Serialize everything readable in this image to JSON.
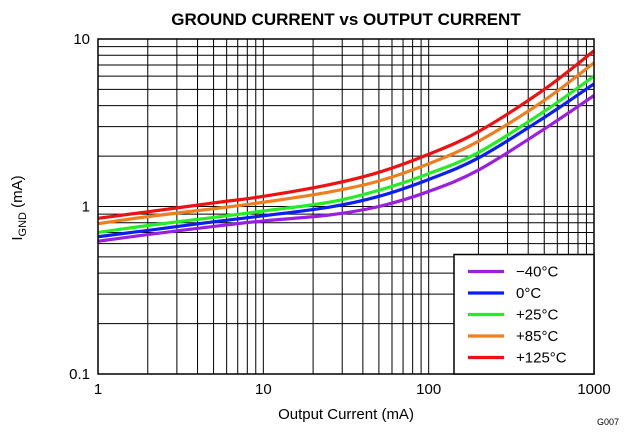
{
  "chart_data": {
    "type": "line",
    "title": "GROUND CURRENT vs OUTPUT CURRENT",
    "xlabel": "Output Current (mA)",
    "ylabel": {
      "main": "I",
      "sub": "GND",
      "unit": " (mA)"
    },
    "xscale": "log",
    "yscale": "log",
    "xlim": [
      1,
      1000
    ],
    "ylim": [
      0.1,
      10
    ],
    "xticks": [
      1,
      10,
      100,
      1000
    ],
    "xtick_labels": [
      "1",
      "10",
      "100",
      "1000"
    ],
    "yticks": [
      0.1,
      1,
      10
    ],
    "ytick_labels": [
      "0.1",
      "1",
      "10"
    ],
    "grid": true,
    "legend_position": "bottom-right",
    "figure_id": "G007",
    "x": [
      1,
      2,
      5,
      10,
      25,
      50,
      100,
      200,
      500,
      1000
    ],
    "series": [
      {
        "name": "−40°C",
        "color": "#9b1fe0",
        "values": [
          0.62,
          0.68,
          0.76,
          0.82,
          0.89,
          1.0,
          1.23,
          1.65,
          2.9,
          4.6
        ]
      },
      {
        "name": "0°C",
        "color": "#0a1ff2",
        "values": [
          0.66,
          0.72,
          0.81,
          0.88,
          0.99,
          1.15,
          1.45,
          1.95,
          3.4,
          5.4
        ]
      },
      {
        "name": "+25°C",
        "color": "#22ee22",
        "values": [
          0.7,
          0.77,
          0.86,
          0.94,
          1.06,
          1.25,
          1.57,
          2.1,
          3.7,
          6.0
        ]
      },
      {
        "name": "+85°C",
        "color": "#ee7f1e",
        "values": [
          0.79,
          0.87,
          0.97,
          1.06,
          1.22,
          1.42,
          1.8,
          2.45,
          4.3,
          7.2
        ]
      },
      {
        "name": "+125°C",
        "color": "#ee1111",
        "values": [
          0.85,
          0.93,
          1.05,
          1.15,
          1.35,
          1.6,
          2.05,
          2.8,
          5.0,
          8.5
        ]
      }
    ]
  }
}
